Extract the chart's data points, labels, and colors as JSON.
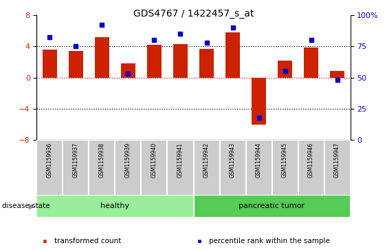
{
  "title": "GDS4767 / 1422457_s_at",
  "samples": [
    "GSM1159936",
    "GSM1159937",
    "GSM1159938",
    "GSM1159939",
    "GSM1159940",
    "GSM1159941",
    "GSM1159942",
    "GSM1159943",
    "GSM1159944",
    "GSM1159945",
    "GSM1159946",
    "GSM1159947"
  ],
  "transformed_count": [
    3.6,
    3.4,
    5.2,
    1.8,
    4.2,
    4.3,
    3.7,
    5.8,
    -6.0,
    2.2,
    3.8,
    0.8
  ],
  "percentile_rank": [
    82,
    75,
    92,
    53,
    80,
    85,
    78,
    90,
    18,
    55,
    80,
    48
  ],
  "bar_color": "#cc2200",
  "dot_color": "#0000cc",
  "ylim_left": [
    -8,
    8
  ],
  "ylim_right": [
    0,
    100
  ],
  "yticks_left": [
    -8,
    -4,
    0,
    4,
    8
  ],
  "yticks_right": [
    0,
    25,
    50,
    75,
    100
  ],
  "hlines_dotted": [
    4.0,
    -4.0
  ],
  "hline_red_dotted": 0.0,
  "groups": [
    {
      "label": "healthy",
      "start": 0,
      "end": 5,
      "color": "#99ee99"
    },
    {
      "label": "pancreatic tumor",
      "start": 6,
      "end": 11,
      "color": "#55cc55"
    }
  ],
  "disease_state_label": "disease state",
  "legend_items": [
    {
      "color": "#cc2200",
      "label": "transformed count"
    },
    {
      "color": "#0000cc",
      "label": "percentile rank within the sample"
    }
  ],
  "bar_width": 0.55,
  "dot_size": 22,
  "background_color": "#ffffff",
  "plot_bg_color": "#ffffff",
  "left_tick_color": "#cc2200",
  "right_tick_color": "#0000cc",
  "cell_bg_color": "#cccccc",
  "cell_border_color": "#ffffff"
}
